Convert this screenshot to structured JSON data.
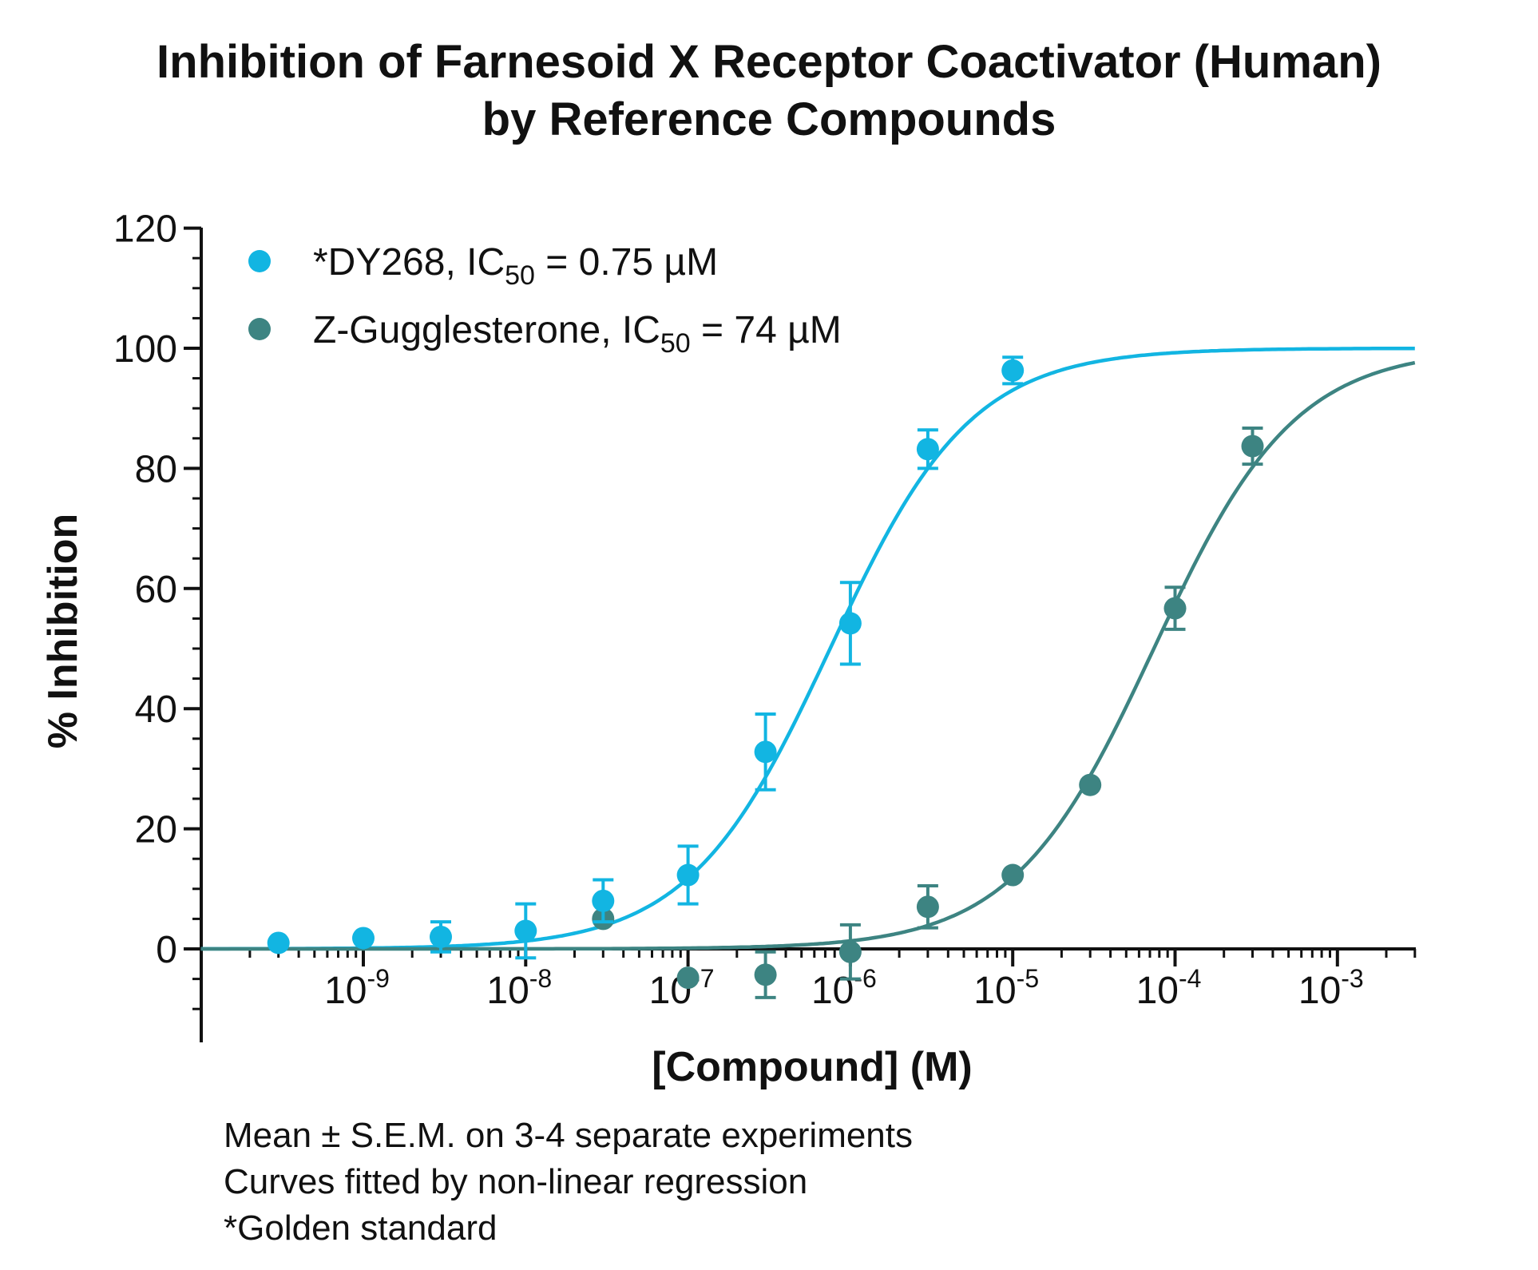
{
  "chart_data": {
    "type": "scatter",
    "title": [
      "Inhibition of Farnesoid X Receptor Coactivator (Human)",
      "by Reference Compounds"
    ],
    "xlabel": "[Compound] (M)",
    "ylabel": "% Inhibition",
    "x_scale": "log",
    "xlim": [
      1e-10,
      0.003
    ],
    "ylim": [
      -15,
      120
    ],
    "x_ticks": [
      {
        "base": "10",
        "exp": "-9",
        "value": 1e-09
      },
      {
        "base": "10",
        "exp": "-8",
        "value": 1e-08
      },
      {
        "base": "10",
        "exp": "-7",
        "value": 1e-07
      },
      {
        "base": "10",
        "exp": "-6",
        "value": 1e-06
      },
      {
        "base": "10",
        "exp": "-5",
        "value": 1e-05
      },
      {
        "base": "10",
        "exp": "-4",
        "value": 0.0001
      },
      {
        "base": "10",
        "exp": "-3",
        "value": 0.001
      }
    ],
    "y_ticks": [
      0,
      20,
      40,
      60,
      80,
      100,
      120
    ],
    "legend_position": "top-left",
    "series": [
      {
        "legend_prefix": "*DY268, IC",
        "legend_sub": "50",
        "legend_suffix": " = 0.75 µM",
        "color": "#12b5e2",
        "ic50": 7.5e-07,
        "x": [
          3e-10,
          1e-09,
          3e-09,
          1e-08,
          3e-08,
          1e-07,
          3e-07,
          1e-06,
          3e-06,
          1e-05
        ],
        "y": [
          1.0,
          1.8,
          2.0,
          3.0,
          8.0,
          12.3,
          32.8,
          54.2,
          83.2,
          96.3
        ],
        "sem": [
          0,
          0,
          2.5,
          4.5,
          3.5,
          4.8,
          6.3,
          6.8,
          3.2,
          2.2
        ]
      },
      {
        "legend_prefix": "Z-Gugglesterone, IC",
        "legend_sub": "50",
        "legend_suffix": " = 74 µM",
        "color": "#3d8482",
        "ic50": 7.4e-05,
        "x": [
          3e-08,
          1e-07,
          3e-07,
          1e-06,
          3e-06,
          1e-05,
          3e-05,
          0.0001,
          0.0003
        ],
        "y": [
          5.0,
          -4.8,
          -4.3,
          -0.5,
          7.0,
          12.3,
          27.3,
          56.7,
          83.7
        ],
        "sem": [
          0,
          0,
          3.8,
          4.5,
          3.5,
          0,
          0,
          3.5,
          3.0
        ]
      }
    ]
  },
  "footnotes": [
    "Mean ± S.E.M. on 3-4 separate experiments",
    "Curves fitted by non-linear regression",
    "*Golden standard"
  ]
}
